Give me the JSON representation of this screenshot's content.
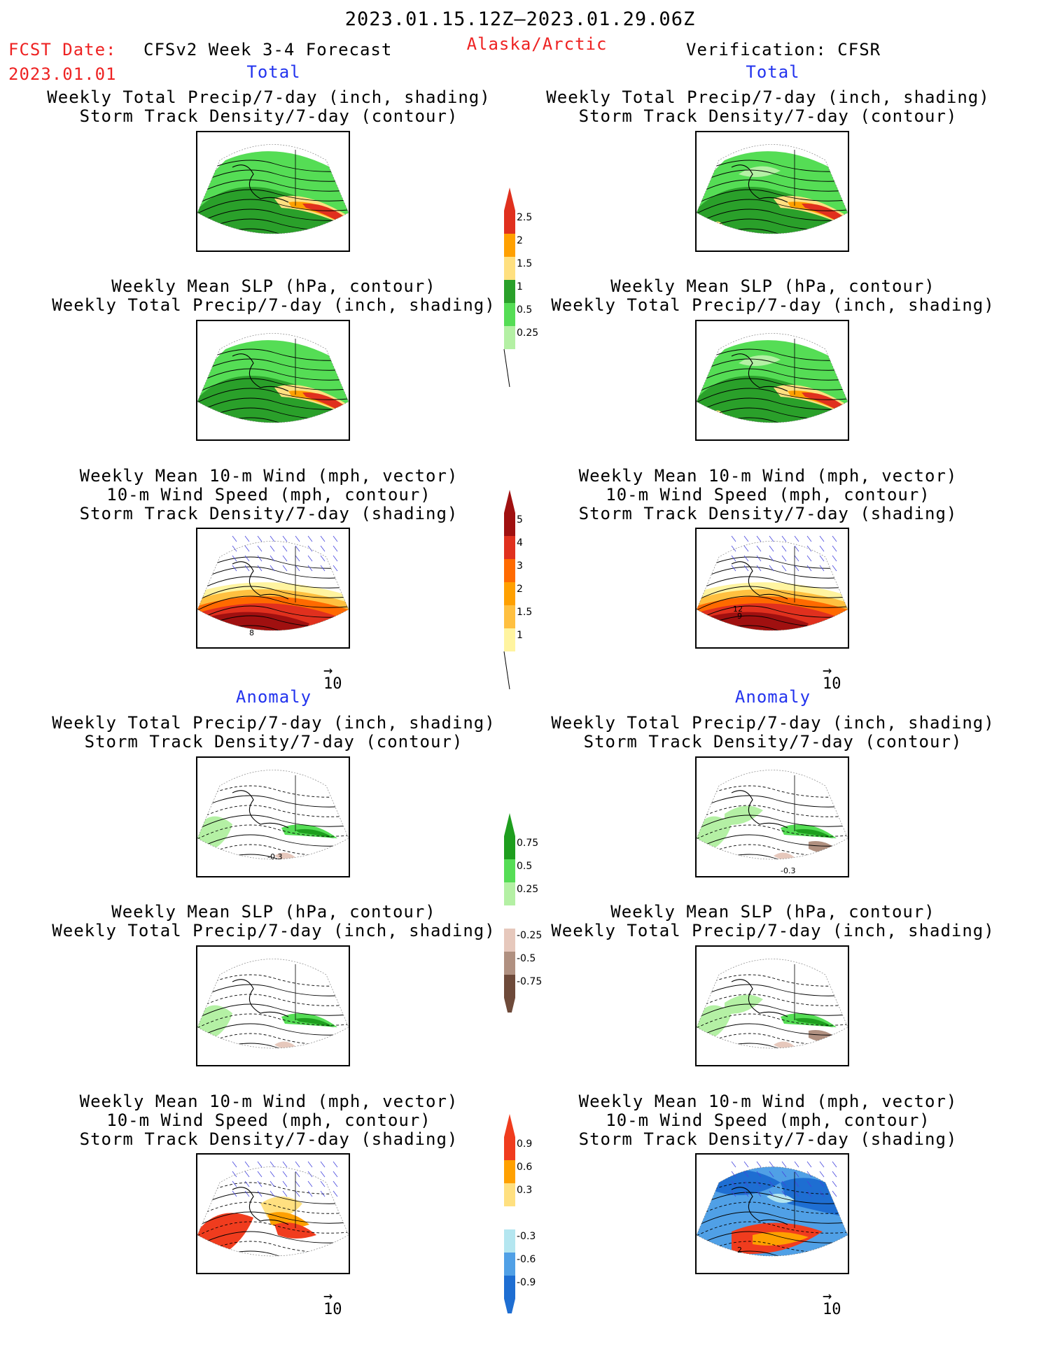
{
  "header": {
    "date_range": "2023.01.15.12Z–2023.01.29.06Z",
    "fcst_label": "FCST Date:",
    "fcst_date": "2023.01.01",
    "model": "CFSv2 Week 3-4 Forecast",
    "region": "Alaska/Arctic",
    "verification": "Verification: CFSR"
  },
  "sections": {
    "total": "Total",
    "anomaly": "Anomaly"
  },
  "titles": {
    "precip_storm": [
      "Weekly Total Precip/7-day (inch, shading)",
      "Storm Track Density/7-day (contour)"
    ],
    "slp_precip": [
      "Weekly Mean SLP (hPa, contour)",
      "Weekly Total Precip/7-day (inch, shading)"
    ],
    "wind_storm": [
      "Weekly Mean 10-m Wind (mph, vector)",
      "10-m Wind Speed (mph, contour)",
      "Storm Track Density/7-day (shading)"
    ]
  },
  "vector_ref": {
    "arrow": "→",
    "value": "10"
  },
  "contour_labels": {
    "fcst_total_wind": "8",
    "cfsr_total_wind_a": "12",
    "cfsr_total_wind_b": "9",
    "fcst_anom_precip": "-0.3",
    "cfsr_anom_precip": "-0.3",
    "cfsr_anom_wind": "2"
  },
  "colorbars": {
    "precip_total": {
      "labels": [
        "2.5",
        "2",
        "1.5",
        "1",
        "0.5",
        "0.25"
      ],
      "colors": [
        "#e0301e",
        "#ffa000",
        "#ffe080",
        "#2aa02a",
        "#55dd55",
        "#b4f0a4"
      ]
    },
    "storm_total": {
      "labels": [
        "5",
        "4",
        "3",
        "2",
        "1.5",
        "1"
      ],
      "colors": [
        "#a01010",
        "#e0301e",
        "#ff6a00",
        "#ffa000",
        "#ffc040",
        "#fff4a0"
      ]
    },
    "precip_anom": {
      "labels": [
        "0.75",
        "0.5",
        "0.25",
        "-0.25",
        "-0.5",
        "-0.75"
      ],
      "colors": [
        "#1e9e1e",
        "#55dd55",
        "#b4f0a4",
        "#e6c8bc",
        "#b09080",
        "#6e4a3a"
      ]
    },
    "storm_anom": {
      "labels": [
        "0.9",
        "0.6",
        "0.3",
        "-0.3",
        "-0.6",
        "-0.9"
      ],
      "colors": [
        "#f03c1e",
        "#ffa000",
        "#ffe080",
        "#b4e6f0",
        "#50a0e6",
        "#1e6ed2"
      ]
    }
  },
  "chart_data": [
    {
      "type": "heatmap",
      "panel": "Forecast Total: Weekly Total Precip / Storm Track Density",
      "shading_scale": "precip_total"
    },
    {
      "type": "heatmap",
      "panel": "Forecast Total: Weekly Mean SLP / Weekly Total Precip",
      "shading_scale": "precip_total"
    },
    {
      "type": "heatmap",
      "panel": "Forecast Total: 10-m Wind / Storm Track Density",
      "shading_scale": "storm_total"
    },
    {
      "type": "heatmap",
      "panel": "CFSR Total: Weekly Total Precip / Storm Track Density",
      "shading_scale": "precip_total"
    },
    {
      "type": "heatmap",
      "panel": "CFSR Total: Weekly Mean SLP / Weekly Total Precip",
      "shading_scale": "precip_total"
    },
    {
      "type": "heatmap",
      "panel": "CFSR Total: 10-m Wind / Storm Track Density",
      "shading_scale": "storm_total"
    },
    {
      "type": "heatmap",
      "panel": "Forecast Anomaly: Weekly Total Precip / Storm Track Density",
      "shading_scale": "precip_anom"
    },
    {
      "type": "heatmap",
      "panel": "Forecast Anomaly: Weekly Mean SLP / Weekly Total Precip",
      "shading_scale": "precip_anom"
    },
    {
      "type": "heatmap",
      "panel": "Forecast Anomaly: 10-m Wind / Storm Track Density",
      "shading_scale": "storm_anom"
    },
    {
      "type": "heatmap",
      "panel": "CFSR Anomaly: Weekly Total Precip / Storm Track Density",
      "shading_scale": "precip_anom"
    },
    {
      "type": "heatmap",
      "panel": "CFSR Anomaly: Weekly Mean SLP / Weekly Total Precip",
      "shading_scale": "precip_anom"
    },
    {
      "type": "heatmap",
      "panel": "CFSR Anomaly: 10-m Wind / Storm Track Density",
      "shading_scale": "storm_anom"
    }
  ]
}
